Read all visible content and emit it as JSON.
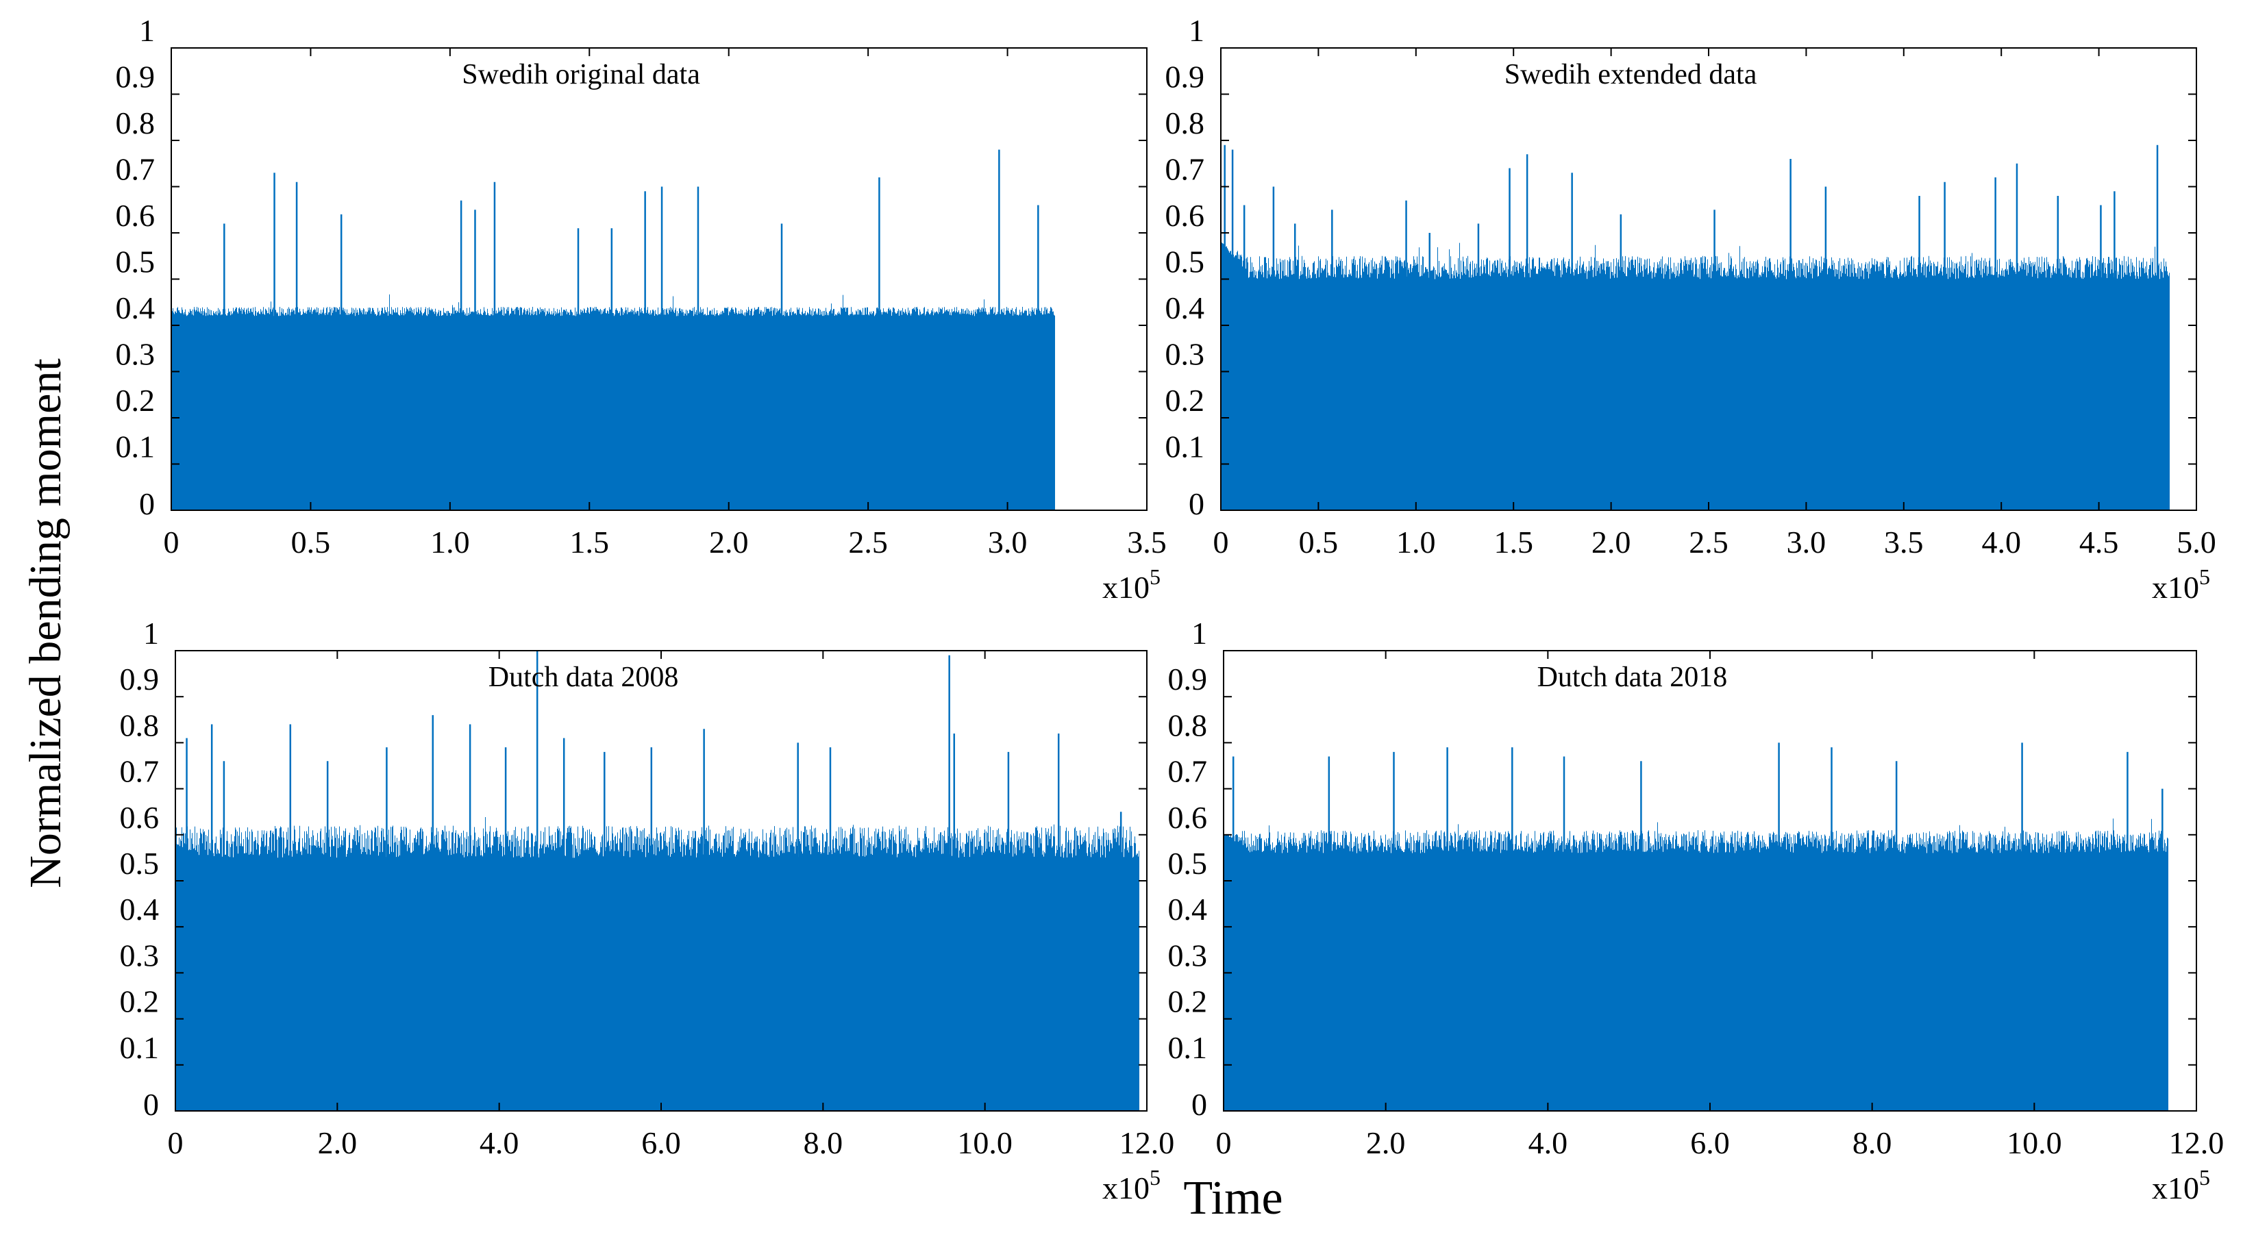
{
  "figure": {
    "ylabel": "Normalized bending moment",
    "xlabel": "Time"
  },
  "colors": {
    "series": "#0070c0",
    "axes": "#000000",
    "background": "#ffffff"
  },
  "chart_data": [
    {
      "type": "bar",
      "title": "Swedih original data",
      "x_range": [
        0,
        3.5
      ],
      "data_extent": 3.17,
      "x_multiplier": {
        "base": "x10",
        "exp": "5"
      },
      "x_tick_values": [
        0,
        0.5,
        1.0,
        1.5,
        2.0,
        2.5,
        3.0,
        3.5
      ],
      "x_tick_labels": [
        "0",
        "0.5",
        "1.0",
        "1.5",
        "2.0",
        "2.5",
        "3.0",
        "3.5"
      ],
      "y_range": [
        0,
        1
      ],
      "y_tick_values": [
        0,
        0.1,
        0.2,
        0.3,
        0.4,
        0.5,
        0.6,
        0.7,
        0.8,
        0.9,
        1
      ],
      "y_tick_labels": [
        "0",
        "0.1",
        "0.2",
        "0.3",
        "0.4",
        "0.5",
        "0.6",
        "0.7",
        "0.8",
        "0.9",
        "1"
      ],
      "floor": 0.39,
      "noise": [
        0.42,
        0.44
      ],
      "start_level": 0.4,
      "peaks": [
        [
          0.19,
          0.62
        ],
        [
          0.37,
          0.73
        ],
        [
          0.45,
          0.71
        ],
        [
          0.61,
          0.64
        ],
        [
          1.04,
          0.67
        ],
        [
          1.09,
          0.65
        ],
        [
          1.16,
          0.71
        ],
        [
          1.46,
          0.61
        ],
        [
          1.58,
          0.61
        ],
        [
          1.7,
          0.69
        ],
        [
          1.76,
          0.7
        ],
        [
          1.89,
          0.7
        ],
        [
          2.19,
          0.62
        ],
        [
          2.54,
          0.72
        ],
        [
          2.97,
          0.78
        ],
        [
          3.11,
          0.66
        ]
      ]
    },
    {
      "type": "bar",
      "title": "Swedih extended data",
      "x_range": [
        0,
        5.0
      ],
      "data_extent": 4.86,
      "x_multiplier": {
        "base": "x10",
        "exp": "5"
      },
      "x_tick_values": [
        0,
        0.5,
        1.0,
        1.5,
        2.0,
        2.5,
        3.0,
        3.5,
        4.0,
        4.5,
        5.0
      ],
      "x_tick_labels": [
        "0",
        "0.5",
        "1.0",
        "1.5",
        "2.0",
        "2.5",
        "3.0",
        "3.5",
        "4.0",
        "4.5",
        "5.0"
      ],
      "y_range": [
        0,
        1
      ],
      "y_tick_values": [
        0,
        0.1,
        0.2,
        0.3,
        0.4,
        0.5,
        0.6,
        0.7,
        0.8,
        0.9,
        1
      ],
      "y_tick_labels": [
        "0",
        "0.1",
        "0.2",
        "0.3",
        "0.4",
        "0.5",
        "0.6",
        "0.7",
        "0.8",
        "0.9",
        "1"
      ],
      "floor": 0.44,
      "noise": [
        0.5,
        0.55
      ],
      "start_level": 0.58,
      "peaks": [
        [
          0.02,
          0.79
        ],
        [
          0.06,
          0.78
        ],
        [
          0.12,
          0.66
        ],
        [
          0.27,
          0.7
        ],
        [
          0.38,
          0.62
        ],
        [
          0.57,
          0.65
        ],
        [
          0.95,
          0.67
        ],
        [
          1.07,
          0.6
        ],
        [
          1.32,
          0.62
        ],
        [
          1.48,
          0.74
        ],
        [
          1.57,
          0.77
        ],
        [
          1.8,
          0.73
        ],
        [
          2.05,
          0.64
        ],
        [
          2.53,
          0.65
        ],
        [
          2.92,
          0.76
        ],
        [
          3.1,
          0.7
        ],
        [
          3.58,
          0.68
        ],
        [
          3.71,
          0.71
        ],
        [
          3.97,
          0.72
        ],
        [
          4.08,
          0.75
        ],
        [
          4.29,
          0.68
        ],
        [
          4.51,
          0.66
        ],
        [
          4.58,
          0.69
        ],
        [
          4.8,
          0.79
        ]
      ]
    },
    {
      "type": "bar",
      "title": "Dutch data 2008",
      "x_range": [
        0,
        12.0
      ],
      "data_extent": 11.9,
      "x_multiplier": {
        "base": "x10",
        "exp": "5"
      },
      "x_tick_values": [
        0,
        2.0,
        4.0,
        6.0,
        8.0,
        10.0,
        12.0
      ],
      "x_tick_labels": [
        "0",
        "2.0",
        "4.0",
        "6.0",
        "8.0",
        "10.0",
        "12.0"
      ],
      "y_range": [
        0,
        1
      ],
      "y_tick_values": [
        0,
        0.1,
        0.2,
        0.3,
        0.4,
        0.5,
        0.6,
        0.7,
        0.8,
        0.9,
        1
      ],
      "y_tick_labels": [
        "0",
        "0.1",
        "0.2",
        "0.3",
        "0.4",
        "0.5",
        "0.6",
        "0.7",
        "0.8",
        "0.9",
        "1"
      ],
      "floor": 0.46,
      "noise": [
        0.55,
        0.62
      ],
      "start_level": 0.58,
      "peaks": [
        [
          0.14,
          0.81
        ],
        [
          0.45,
          0.84
        ],
        [
          0.6,
          0.76
        ],
        [
          1.42,
          0.84
        ],
        [
          1.88,
          0.76
        ],
        [
          2.61,
          0.79
        ],
        [
          3.18,
          0.86
        ],
        [
          3.64,
          0.84
        ],
        [
          4.08,
          0.79
        ],
        [
          4.47,
          1.0
        ],
        [
          4.8,
          0.81
        ],
        [
          5.3,
          0.78
        ],
        [
          5.88,
          0.79
        ],
        [
          6.53,
          0.83
        ],
        [
          7.69,
          0.8
        ],
        [
          8.09,
          0.79
        ],
        [
          9.56,
          0.99
        ],
        [
          9.62,
          0.82
        ],
        [
          10.29,
          0.78
        ],
        [
          10.91,
          0.82
        ],
        [
          11.68,
          0.65
        ]
      ]
    },
    {
      "type": "bar",
      "title": "Dutch data 2018",
      "x_range": [
        0,
        12.0
      ],
      "data_extent": 11.65,
      "x_multiplier": {
        "base": "x10",
        "exp": "5"
      },
      "x_tick_values": [
        0,
        2.0,
        4.0,
        6.0,
        8.0,
        10.0,
        12.0
      ],
      "x_tick_labels": [
        "0",
        "2.0",
        "4.0",
        "6.0",
        "8.0",
        "10.0",
        "12.0"
      ],
      "y_range": [
        0,
        1
      ],
      "y_tick_values": [
        0,
        0.1,
        0.2,
        0.3,
        0.4,
        0.5,
        0.6,
        0.7,
        0.8,
        0.9,
        1
      ],
      "y_tick_labels": [
        "0",
        "0.1",
        "0.2",
        "0.3",
        "0.4",
        "0.5",
        "0.6",
        "0.7",
        "0.8",
        "0.9",
        "1"
      ],
      "floor": 0.47,
      "noise": [
        0.56,
        0.61
      ],
      "start_level": 0.6,
      "peaks": [
        [
          0.12,
          0.77
        ],
        [
          1.3,
          0.77
        ],
        [
          2.1,
          0.78
        ],
        [
          2.76,
          0.79
        ],
        [
          3.56,
          0.79
        ],
        [
          4.2,
          0.77
        ],
        [
          5.15,
          0.76
        ],
        [
          6.85,
          0.8
        ],
        [
          7.5,
          0.79
        ],
        [
          8.3,
          0.76
        ],
        [
          9.85,
          0.8
        ],
        [
          11.15,
          0.78
        ],
        [
          11.58,
          0.7
        ]
      ]
    }
  ]
}
